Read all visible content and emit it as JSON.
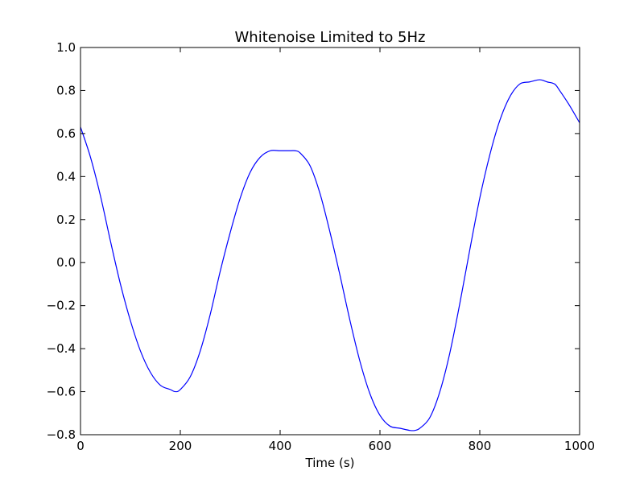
{
  "chart_data": {
    "type": "line",
    "title": "Whitenoise Limited to 5Hz",
    "xlabel": "Time (s)",
    "ylabel": "",
    "xlim": [
      0,
      1000
    ],
    "ylim": [
      -0.8,
      1.0
    ],
    "x_ticks": [
      0,
      200,
      400,
      600,
      800,
      1000
    ],
    "x_tick_labels": [
      "0",
      "200",
      "400",
      "600",
      "800",
      "1000"
    ],
    "y_ticks": [
      -0.8,
      -0.6,
      -0.4,
      -0.2,
      0.0,
      0.2,
      0.4,
      0.6,
      0.8,
      1.0
    ],
    "y_tick_labels": [
      "−0.8",
      "−0.6",
      "−0.4",
      "−0.2",
      "0.0",
      "0.2",
      "0.4",
      "0.6",
      "0.8",
      "1.0"
    ],
    "grid": false,
    "legend": "none",
    "series": [
      {
        "color": "#0000ff",
        "x": [
          0,
          20,
          40,
          60,
          80,
          100,
          120,
          140,
          160,
          180,
          190,
          200,
          220,
          240,
          260,
          280,
          300,
          320,
          340,
          360,
          380,
          400,
          420,
          430,
          440,
          460,
          480,
          500,
          520,
          540,
          560,
          580,
          600,
          620,
          640,
          660,
          670,
          680,
          700,
          720,
          740,
          760,
          780,
          800,
          820,
          840,
          860,
          880,
          900,
          920,
          935,
          950,
          960,
          980,
          1000
        ],
        "y": [
          0.63,
          0.49,
          0.31,
          0.1,
          -0.1,
          -0.27,
          -0.41,
          -0.51,
          -0.57,
          -0.59,
          -0.6,
          -0.59,
          -0.53,
          -0.41,
          -0.24,
          -0.04,
          0.14,
          0.3,
          0.42,
          0.49,
          0.52,
          0.52,
          0.52,
          0.52,
          0.51,
          0.45,
          0.32,
          0.14,
          -0.06,
          -0.27,
          -0.46,
          -0.61,
          -0.71,
          -0.76,
          -0.77,
          -0.78,
          -0.78,
          -0.77,
          -0.72,
          -0.6,
          -0.42,
          -0.19,
          0.06,
          0.3,
          0.5,
          0.66,
          0.77,
          0.83,
          0.84,
          0.85,
          0.84,
          0.83,
          0.8,
          0.73,
          0.65
        ]
      }
    ]
  }
}
